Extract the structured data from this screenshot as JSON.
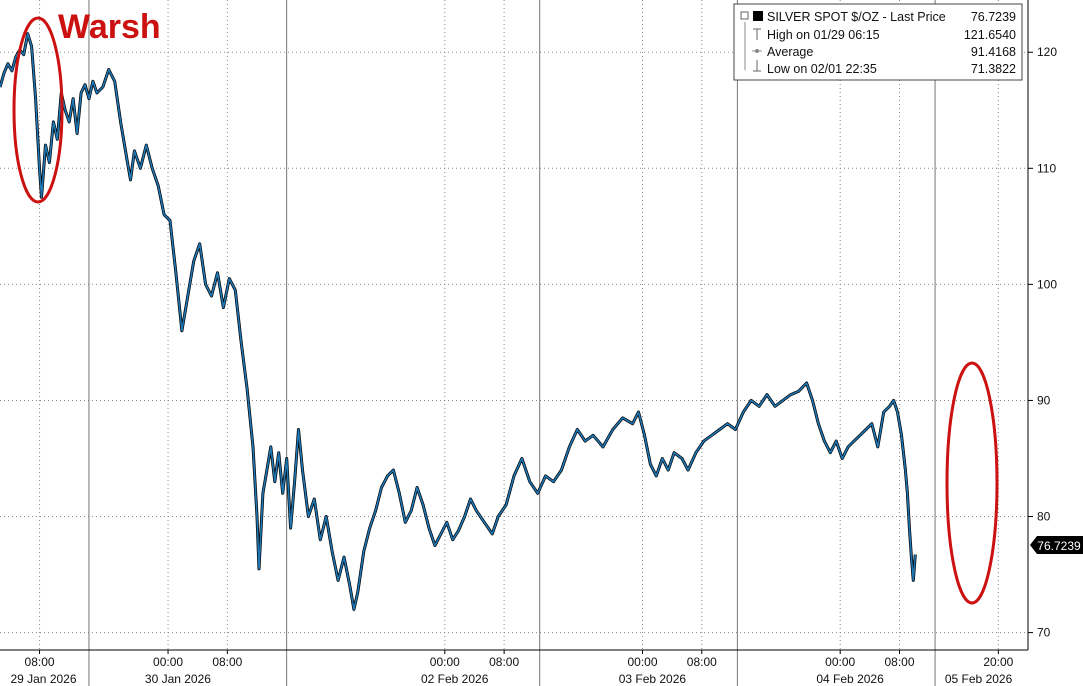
{
  "chart_data": {
    "type": "line",
    "legend": {
      "placement": "top-right",
      "entries": [
        {
          "label": "SILVER SPOT $/OZ - Last Price",
          "value": "76.7239"
        },
        {
          "label": "High on 01/29 06:15",
          "value": "121.6540"
        },
        {
          "label": "Average",
          "value": "91.4168"
        },
        {
          "label": "Low on 02/01 22:35",
          "value": "71.3822"
        }
      ]
    },
    "annotations": [
      {
        "text": "Warsh",
        "color": "#cc1111"
      }
    ],
    "last_price_label": "76.7239",
    "y_axis": {
      "side": "right",
      "ylim": [
        68.5,
        124.5
      ],
      "ticks": [
        70,
        80,
        90,
        100,
        110,
        120
      ],
      "tick_labels": [
        "70",
        "80",
        "90",
        "100",
        "110",
        "120"
      ]
    },
    "x_axis": {
      "time_ticks": [
        {
          "label": "08:00",
          "x": 0.2
        },
        {
          "label": "00:00",
          "x": 0.85
        },
        {
          "label": "08:00",
          "x": 1.15
        },
        {
          "label": "00:00",
          "x": 2.25
        },
        {
          "label": "08:00",
          "x": 2.55
        },
        {
          "label": "00:00",
          "x": 3.25
        },
        {
          "label": "08:00",
          "x": 3.55
        },
        {
          "label": "00:00",
          "x": 4.25
        },
        {
          "label": "08:00",
          "x": 4.55
        },
        {
          "label": "20:00",
          "x": 5.05
        }
      ],
      "date_labels": [
        {
          "label": "29 Jan 2026",
          "x": 0.22
        },
        {
          "label": "30 Jan 2026",
          "x": 0.9
        },
        {
          "label": "02 Feb 2026",
          "x": 2.3
        },
        {
          "label": "03 Feb 2026",
          "x": 3.3
        },
        {
          "label": "04 Feb 2026",
          "x": 4.3
        },
        {
          "label": "05 Feb 2026",
          "x": 4.95
        }
      ],
      "session_breaks": [
        0.45,
        1.45,
        2.73,
        3.73,
        4.73
      ]
    },
    "grid": true,
    "colors": {
      "line": "#1f77b4",
      "price_edge": "#000000",
      "annotation": "#cc1111",
      "grid": "#888888"
    },
    "series": [
      {
        "values": [
          [
            0.0,
            117.0
          ],
          [
            0.02,
            118.2
          ],
          [
            0.04,
            119.0
          ],
          [
            0.06,
            118.4
          ],
          [
            0.08,
            119.6
          ],
          [
            0.1,
            120.2
          ],
          [
            0.12,
            119.8
          ],
          [
            0.14,
            121.6
          ],
          [
            0.16,
            120.5
          ],
          [
            0.18,
            116.0
          ],
          [
            0.2,
            110.0
          ],
          [
            0.21,
            107.5
          ],
          [
            0.23,
            112.0
          ],
          [
            0.25,
            110.5
          ],
          [
            0.27,
            114.0
          ],
          [
            0.29,
            112.5
          ],
          [
            0.31,
            116.5
          ],
          [
            0.33,
            115.0
          ],
          [
            0.35,
            114.0
          ],
          [
            0.37,
            116.0
          ],
          [
            0.39,
            113.0
          ],
          [
            0.41,
            116.5
          ],
          [
            0.43,
            117.2
          ],
          [
            0.45,
            116.0
          ],
          [
            0.47,
            117.5
          ],
          [
            0.49,
            116.5
          ],
          [
            0.52,
            117.0
          ],
          [
            0.55,
            118.5
          ],
          [
            0.58,
            117.5
          ],
          [
            0.61,
            114.0
          ],
          [
            0.64,
            111.0
          ],
          [
            0.66,
            109.0
          ],
          [
            0.68,
            111.5
          ],
          [
            0.71,
            110.0
          ],
          [
            0.74,
            112.0
          ],
          [
            0.77,
            110.0
          ],
          [
            0.8,
            108.5
          ],
          [
            0.83,
            106.0
          ],
          [
            0.86,
            105.5
          ],
          [
            0.89,
            101.0
          ],
          [
            0.92,
            96.0
          ],
          [
            0.95,
            99.0
          ],
          [
            0.98,
            102.0
          ],
          [
            1.01,
            103.5
          ],
          [
            1.04,
            100.0
          ],
          [
            1.07,
            99.0
          ],
          [
            1.1,
            101.0
          ],
          [
            1.13,
            98.0
          ],
          [
            1.16,
            100.5
          ],
          [
            1.19,
            99.5
          ],
          [
            1.22,
            95.0
          ],
          [
            1.25,
            91.0
          ],
          [
            1.28,
            86.0
          ],
          [
            1.3,
            80.0
          ],
          [
            1.31,
            75.5
          ],
          [
            1.33,
            82.0
          ],
          [
            1.35,
            84.0
          ],
          [
            1.37,
            86.0
          ],
          [
            1.39,
            83.0
          ],
          [
            1.41,
            85.5
          ],
          [
            1.43,
            82.0
          ],
          [
            1.45,
            85.0
          ],
          [
            1.47,
            79.0
          ],
          [
            1.49,
            83.0
          ],
          [
            1.51,
            87.5
          ],
          [
            1.53,
            84.0
          ],
          [
            1.56,
            80.0
          ],
          [
            1.59,
            81.5
          ],
          [
            1.62,
            78.0
          ],
          [
            1.65,
            80.0
          ],
          [
            1.68,
            77.0
          ],
          [
            1.71,
            74.5
          ],
          [
            1.74,
            76.5
          ],
          [
            1.77,
            74.0
          ],
          [
            1.79,
            72.0
          ],
          [
            1.81,
            73.5
          ],
          [
            1.84,
            77.0
          ],
          [
            1.87,
            79.0
          ],
          [
            1.9,
            80.5
          ],
          [
            1.93,
            82.5
          ],
          [
            1.96,
            83.5
          ],
          [
            1.99,
            84.0
          ],
          [
            2.02,
            82.0
          ],
          [
            2.05,
            79.5
          ],
          [
            2.08,
            80.5
          ],
          [
            2.11,
            82.5
          ],
          [
            2.14,
            81.0
          ],
          [
            2.17,
            79.0
          ],
          [
            2.2,
            77.5
          ],
          [
            2.23,
            78.5
          ],
          [
            2.26,
            79.5
          ],
          [
            2.29,
            78.0
          ],
          [
            2.32,
            78.8
          ],
          [
            2.35,
            80.0
          ],
          [
            2.38,
            81.5
          ],
          [
            2.41,
            80.5
          ],
          [
            2.45,
            79.5
          ],
          [
            2.49,
            78.5
          ],
          [
            2.52,
            80.0
          ],
          [
            2.56,
            81.0
          ],
          [
            2.6,
            83.5
          ],
          [
            2.64,
            85.0
          ],
          [
            2.68,
            83.0
          ],
          [
            2.72,
            82.0
          ],
          [
            2.76,
            83.5
          ],
          [
            2.8,
            83.0
          ],
          [
            2.84,
            84.0
          ],
          [
            2.88,
            86.0
          ],
          [
            2.92,
            87.5
          ],
          [
            2.96,
            86.5
          ],
          [
            3.0,
            87.0
          ],
          [
            3.05,
            86.0
          ],
          [
            3.1,
            87.5
          ],
          [
            3.15,
            88.5
          ],
          [
            3.2,
            88.0
          ],
          [
            3.23,
            89.0
          ],
          [
            3.26,
            87.0
          ],
          [
            3.29,
            84.5
          ],
          [
            3.32,
            83.5
          ],
          [
            3.35,
            85.0
          ],
          [
            3.38,
            84.0
          ],
          [
            3.41,
            85.5
          ],
          [
            3.45,
            85.0
          ],
          [
            3.48,
            84.0
          ],
          [
            3.52,
            85.5
          ],
          [
            3.56,
            86.5
          ],
          [
            3.6,
            87.0
          ],
          [
            3.64,
            87.5
          ],
          [
            3.68,
            88.0
          ],
          [
            3.72,
            87.5
          ],
          [
            3.76,
            89.0
          ],
          [
            3.8,
            90.0
          ],
          [
            3.84,
            89.5
          ],
          [
            3.88,
            90.5
          ],
          [
            3.92,
            89.5
          ],
          [
            3.96,
            90.0
          ],
          [
            4.0,
            90.5
          ],
          [
            4.04,
            90.8
          ],
          [
            4.08,
            91.5
          ],
          [
            4.11,
            90.0
          ],
          [
            4.14,
            88.0
          ],
          [
            4.17,
            86.5
          ],
          [
            4.2,
            85.5
          ],
          [
            4.23,
            86.5
          ],
          [
            4.26,
            85.0
          ],
          [
            4.29,
            86.0
          ],
          [
            4.32,
            86.5
          ],
          [
            4.35,
            87.0
          ],
          [
            4.38,
            87.5
          ],
          [
            4.41,
            88.0
          ],
          [
            4.44,
            86.0
          ],
          [
            4.47,
            89.0
          ],
          [
            4.5,
            89.5
          ],
          [
            4.52,
            90.0
          ],
          [
            4.54,
            89.0
          ],
          [
            4.56,
            87.0
          ],
          [
            4.58,
            84.0
          ],
          [
            4.59,
            82.0
          ],
          [
            4.6,
            79.0
          ],
          [
            4.61,
            76.5
          ],
          [
            4.62,
            74.5
          ],
          [
            4.63,
            76.7239
          ]
        ]
      }
    ]
  }
}
